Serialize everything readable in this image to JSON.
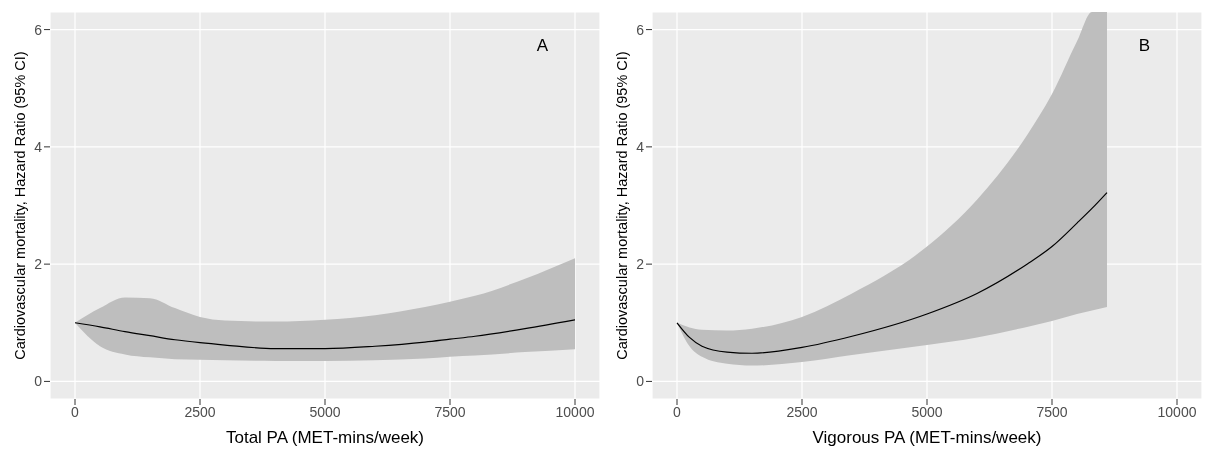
{
  "chart_data": [
    {
      "type": "line",
      "xlabel": "Total PA (MET-mins/week)",
      "ylabel": "Cardiovascular mortality, Hazard Ratio (95% CI)",
      "annotations": [
        "A"
      ],
      "x": [
        0,
        500,
        1000,
        1500,
        2000,
        2500,
        3000,
        4000,
        5000,
        6000,
        7000,
        7500,
        8000,
        9000,
        10000
      ],
      "series": [
        {
          "color": "#000000",
          "values": [
            1,
            0.93,
            0.85,
            0.78,
            0.71,
            0.66,
            0.62,
            0.56,
            0.56,
            0.6,
            0.67,
            0.72,
            0.77,
            0.9,
            1.05
          ],
          "lower": [
            1,
            0.6,
            0.46,
            0.41,
            0.38,
            0.37,
            0.36,
            0.35,
            0.35,
            0.36,
            0.39,
            0.42,
            0.44,
            0.5,
            0.55
          ],
          "upper": [
            1,
            1.25,
            1.43,
            1.42,
            1.25,
            1.1,
            1.04,
            1.02,
            1.05,
            1.13,
            1.27,
            1.36,
            1.46,
            1.75,
            2.1
          ]
        }
      ],
      "xlim": [
        -500,
        10500
      ],
      "xticks": [
        0,
        2500,
        5000,
        7500,
        10000
      ],
      "ylim": [
        -0.3,
        6.3
      ],
      "yticks": [
        0,
        2,
        4,
        6
      ],
      "grid": true,
      "legend": false,
      "line_style": "solid",
      "marker": "none"
    },
    {
      "type": "line",
      "xlabel": "Vigorous PA (MET-mins/week)",
      "ylabel": "Cardiovascular mortality, Hazard Ratio (95% CI)",
      "annotations": [
        "B"
      ],
      "x": [
        0,
        250,
        500,
        1000,
        1500,
        2500,
        3500,
        5000,
        6000,
        7000,
        7500,
        8000,
        8300,
        8600
      ],
      "series": [
        {
          "color": "#000000",
          "values": [
            1,
            0.75,
            0.6,
            0.5,
            0.48,
            0.58,
            0.77,
            1.15,
            1.5,
            2.0,
            2.3,
            2.7,
            2.95,
            3.22
          ],
          "lower": [
            1,
            0.6,
            0.42,
            0.3,
            0.27,
            0.33,
            0.45,
            0.62,
            0.75,
            0.93,
            1.03,
            1.15,
            1.21,
            1.27
          ],
          "upper": [
            1,
            0.92,
            0.88,
            0.87,
            0.9,
            1.1,
            1.5,
            2.3,
            3.1,
            4.2,
            4.9,
            5.8,
            6.3,
            6.3
          ]
        }
      ],
      "xlim": [
        -500,
        10500
      ],
      "xticks": [
        0,
        2500,
        5000,
        7500,
        10000
      ],
      "ylim": [
        -0.3,
        6.3
      ],
      "yticks": [
        0,
        2,
        4,
        6
      ],
      "grid": true,
      "legend": false,
      "line_style": "solid",
      "marker": "none"
    }
  ]
}
